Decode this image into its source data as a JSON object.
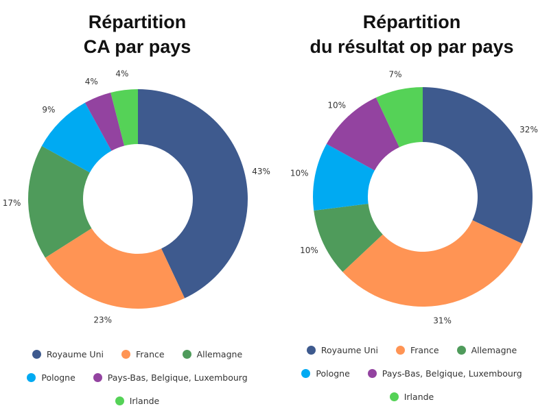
{
  "colors": {
    "royaume_uni": "#3e5a8e",
    "france": "#ff9454",
    "allemagne": "#4f9b5b",
    "pologne": "#00aaf2",
    "benelux": "#9343a0",
    "irlande": "#55d257"
  },
  "chart_data": [
    {
      "type": "pie",
      "style": "donut",
      "title": [
        "Répartition",
        "CA par pays"
      ],
      "categories": [
        "Royaume Uni",
        "France",
        "Allemagne",
        "Pologne",
        "Pays-Bas, Belgique, Luxembourg",
        "Irlande"
      ],
      "values": [
        43,
        23,
        17,
        9,
        4,
        4
      ],
      "labels": [
        "43%",
        "23%",
        "17%",
        "9%",
        "4%",
        "4%"
      ],
      "legend_position": "bottom"
    },
    {
      "type": "pie",
      "style": "donut",
      "title": [
        "Répartition",
        "du résultat op par pays"
      ],
      "categories": [
        "Royaume Uni",
        "France",
        "Allemagne",
        "Pologne",
        "Pays-Bas, Belgique, Luxembourg",
        "Irlande"
      ],
      "values": [
        32,
        31,
        10,
        10,
        10,
        7
      ],
      "labels": [
        "32%",
        "31%",
        "10%",
        "10%",
        "10%",
        "7%"
      ],
      "legend_position": "bottom"
    }
  ]
}
